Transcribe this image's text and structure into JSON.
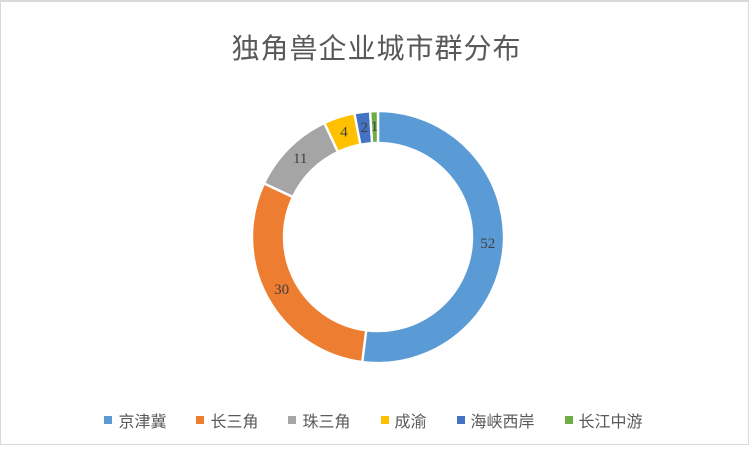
{
  "window": {
    "background_color": "#FFFFFF",
    "frame_border_color": "#D9D9D9"
  },
  "chart_data": {
    "type": "pie",
    "subtype": "donut",
    "title": "独角兽企业城市群分布",
    "categories": [
      "京津冀",
      "长三角",
      "珠三角",
      "成渝",
      "海峡西岸",
      "长江中游"
    ],
    "values": [
      52,
      30,
      11,
      4,
      2,
      1
    ],
    "data_labels": [
      "52",
      "30",
      "11",
      "4",
      "2",
      "1"
    ],
    "colors": [
      "#5B9BD5",
      "#ED7D31",
      "#A5A5A5",
      "#FFC000",
      "#4472C4",
      "#70AD47"
    ],
    "total": 100,
    "start_angle_deg": 0,
    "direction": "clockwise",
    "donut_hole_ratio": 0.75,
    "legend_position": "bottom",
    "title_color": "#595959",
    "data_label_color": "#404040",
    "legend_text_color": "#595959",
    "slice_separator_color": "#FFFFFF"
  }
}
